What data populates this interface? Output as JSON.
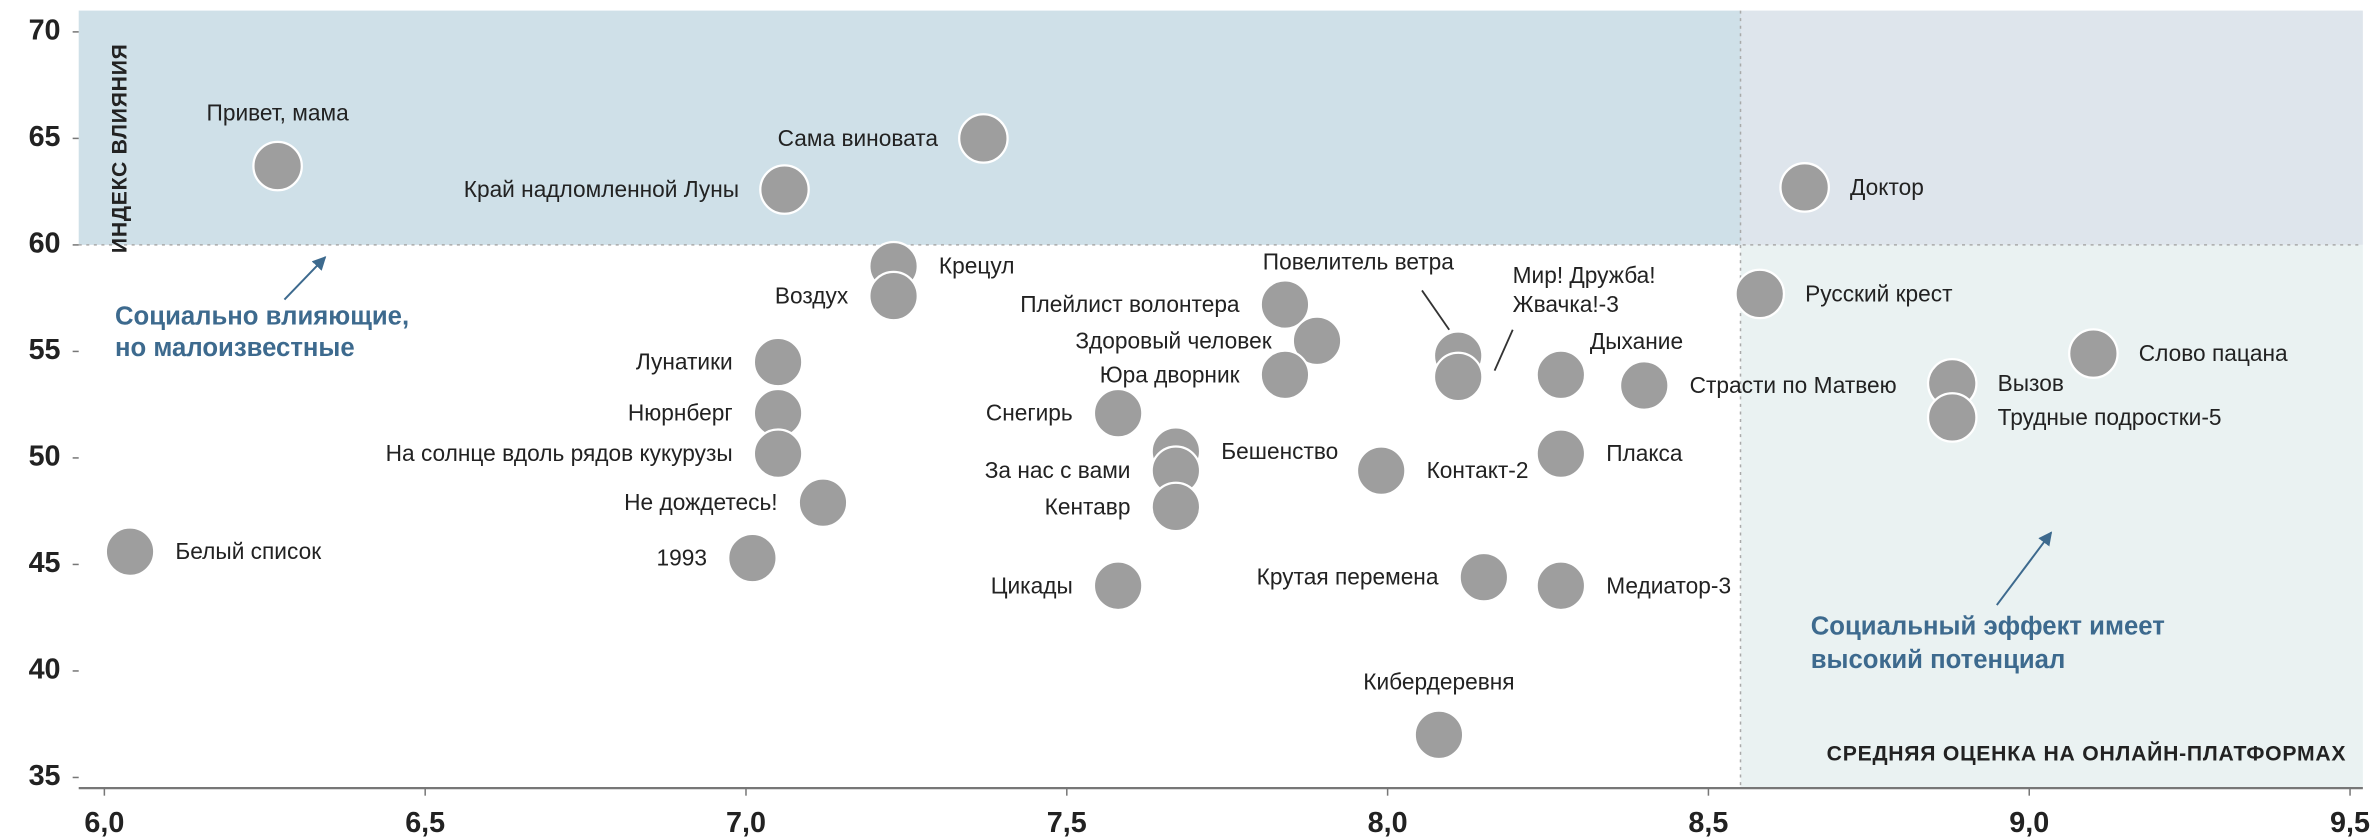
{
  "chart_data": {
    "type": "scatter",
    "x_label": "СРЕДНЯЯ ОЦЕНКА НА ОНЛАЙН-ПЛАТФОРМАХ",
    "y_label": "ИНДЕКС ВЛИЯНИЯ",
    "annotations": [
      [
        "Социально влияющие,",
        "но малоизвестные"
      ],
      [
        "Социальный эффект имеет",
        "высокий потенциал"
      ]
    ],
    "xlim": [
      5.96,
      9.52
    ],
    "ylim": [
      34.5,
      71
    ],
    "xticks": [
      {
        "value": 6,
        "label": "6,0"
      },
      {
        "value": 6.5,
        "label": "6,5"
      },
      {
        "value": 7,
        "label": "7,0"
      },
      {
        "value": 7.5,
        "label": "7,5"
      },
      {
        "value": 8,
        "label": "8,0"
      },
      {
        "value": 8.5,
        "label": "8,5"
      },
      {
        "value": 9,
        "label": "9,0"
      },
      {
        "value": 9.5,
        "label": "9,5"
      }
    ],
    "yticks": [
      35,
      40,
      45,
      50,
      55,
      60,
      65,
      70
    ],
    "x_threshold": 8.55,
    "y_threshold": 60,
    "region_colors": {
      "top_left": "#cfe0e8",
      "top_right": "#dee5ec",
      "bottom_right": "#eaf2f2",
      "bottom_left": "#ffffff"
    },
    "color": "#9e9e9e",
    "series": [
      {
        "names": [
          "Привет, мама",
          "Сама виновата",
          "Край надломленной Луны",
          "Доктор",
          "Крецул",
          "Воздух",
          "Повелитель ветра",
          [
            "Мир! Дружба!",
            "Жвачка!-3"
          ],
          "Плейлист волонтера",
          "Здоровый человек",
          "Юра дворник",
          "Русский крест",
          "Слово пацана",
          "Вызов",
          "Трудные подростки-5",
          "Дыхание",
          "Страсти по Матвею",
          "Лунатики",
          "Нюрнберг",
          "На солнце вдоль рядов кукурузы",
          "Не дождетесь!",
          "1993",
          "Белый список",
          "Снегирь",
          "Бешенство",
          "За нас с вами",
          "Кентавр",
          "Контакт-2",
          "Плакса",
          "Цикады",
          "Крутая перемена",
          "Медиатор-3",
          "Кибердеревня"
        ],
        "x": [
          6.27,
          7.37,
          7.06,
          8.65,
          7.23,
          7.23,
          8.11,
          8.11,
          7.84,
          7.89,
          7.84,
          8.58,
          9.1,
          8.88,
          8.88,
          8.27,
          8.4,
          7.05,
          7.05,
          7.05,
          7.12,
          7.01,
          6.04,
          7.58,
          7.67,
          7.67,
          7.67,
          7.99,
          8.27,
          7.58,
          8.15,
          8.27,
          8.08
        ],
        "values": [
          63.7,
          65.0,
          62.6,
          62.7,
          59.0,
          57.6,
          54.8,
          53.8,
          57.2,
          55.5,
          53.9,
          57.7,
          54.9,
          53.5,
          51.9,
          53.9,
          53.4,
          54.5,
          52.1,
          50.2,
          47.9,
          45.3,
          45.6,
          52.1,
          50.3,
          49.4,
          47.7,
          49.4,
          50.2,
          44.0,
          44.4,
          44.0,
          37.0
        ]
      }
    ]
  }
}
